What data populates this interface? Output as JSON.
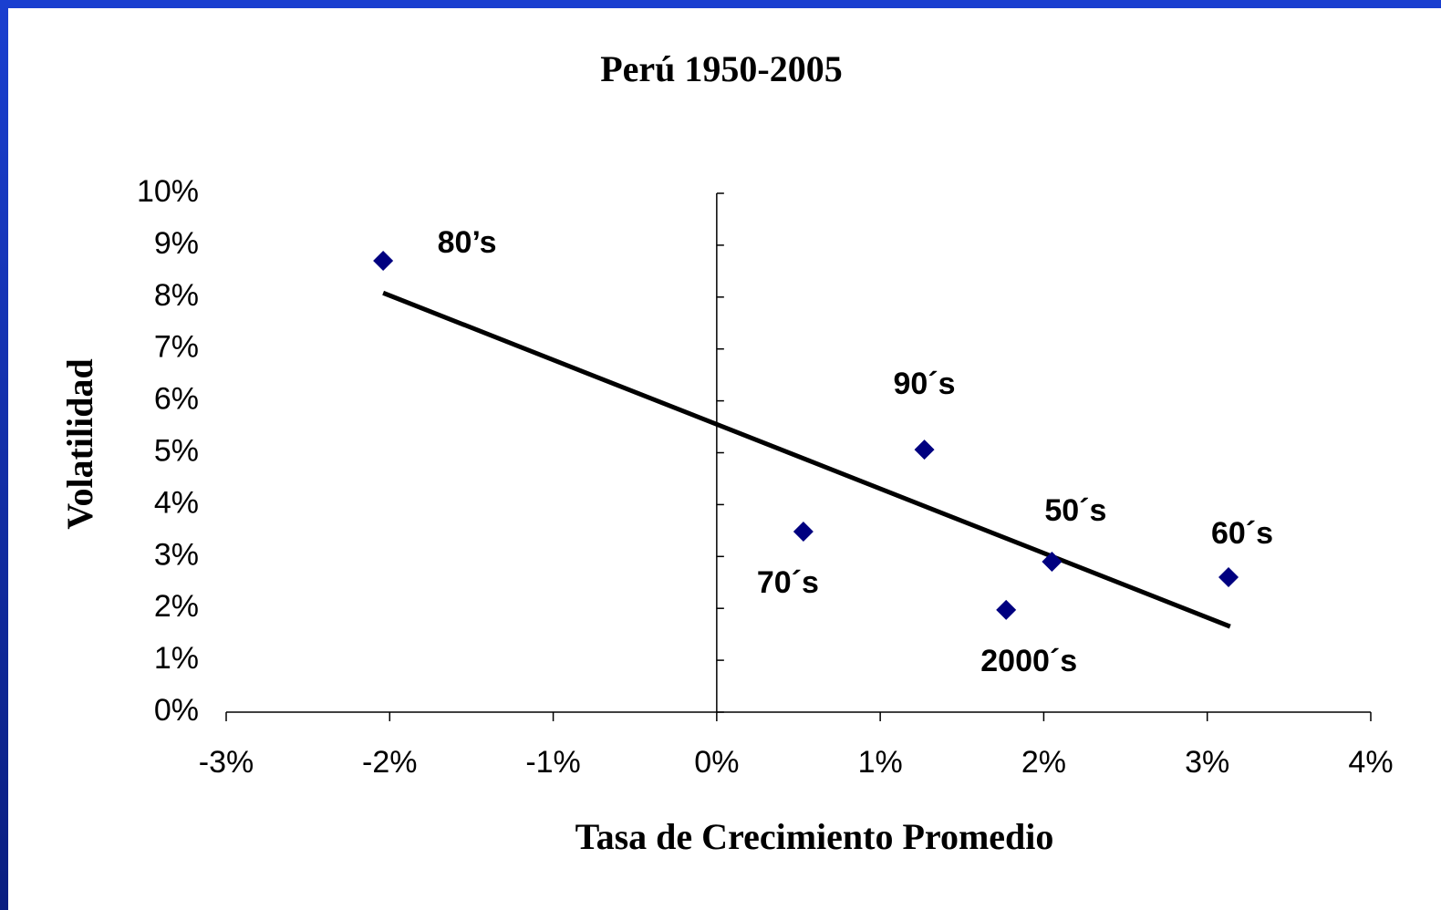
{
  "chart_data": {
    "type": "scatter",
    "title": "Perú 1950-2005",
    "xlabel": "Tasa de Crecimiento Promedio",
    "ylabel": "Volatilidad",
    "x": [
      -2.04,
      1.27,
      0.53,
      2.05,
      1.77,
      3.13
    ],
    "values": [
      8.7,
      5.06,
      3.48,
      2.9,
      1.97,
      2.6
    ],
    "point_labels": [
      "80’s",
      "90´s",
      "70´s",
      "50´s",
      "2000´s",
      "60´s"
    ],
    "color": "#000080",
    "trendline": {
      "x": [
        -2.04,
        3.14
      ],
      "values": [
        8.08,
        1.65
      ],
      "color": "#000000"
    },
    "xlim": [
      -3,
      4
    ],
    "xticks": [
      {
        "value": -3,
        "label": "-3%"
      },
      {
        "value": -2,
        "label": "-2%"
      },
      {
        "value": -1,
        "label": "-1%"
      },
      {
        "value": 0,
        "label": "0%"
      },
      {
        "value": 1,
        "label": "1%"
      },
      {
        "value": 2,
        "label": "2%"
      },
      {
        "value": 3,
        "label": "3%"
      },
      {
        "value": 4,
        "label": "4%"
      }
    ],
    "ylim": [
      0,
      10
    ],
    "yticks": [
      {
        "value": 0,
        "label": "0%"
      },
      {
        "value": 1,
        "label": "1%"
      },
      {
        "value": 2,
        "label": "2%"
      },
      {
        "value": 3,
        "label": "3%"
      },
      {
        "value": 4,
        "label": "4%"
      },
      {
        "value": 5,
        "label": "5%"
      },
      {
        "value": 6,
        "label": "6%"
      },
      {
        "value": 7,
        "label": "7%"
      },
      {
        "value": 8,
        "label": "8%"
      },
      {
        "value": 9,
        "label": "9%"
      },
      {
        "value": 10,
        "label": "10%"
      }
    ],
    "grid": false
  }
}
